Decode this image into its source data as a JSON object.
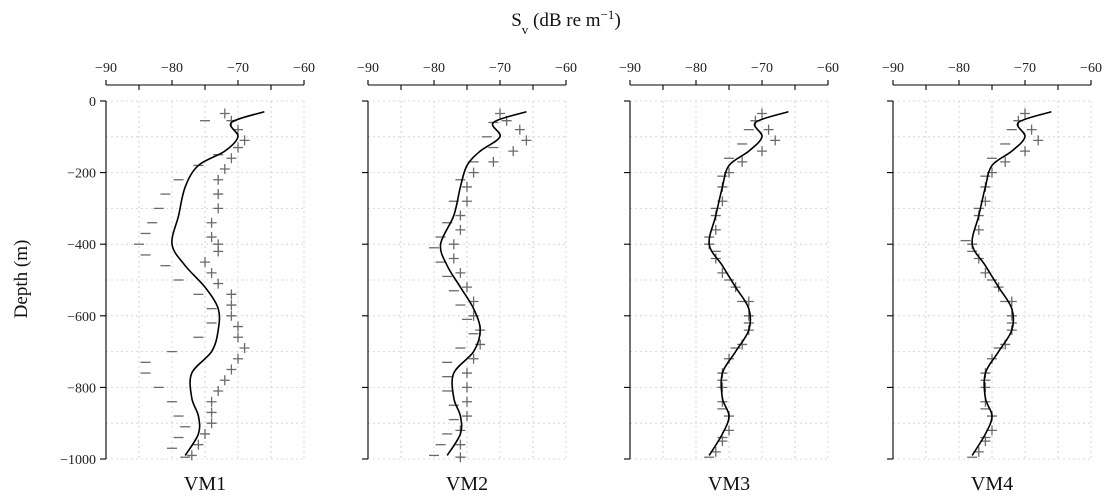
{
  "chart_data": {
    "type": "scatter",
    "title": "",
    "xlabel": "S",
    "xlabel_sub": "v",
    "xlabel_units": " (dB re m",
    "xlabel_sup": "−1",
    "xlabel_close": ")",
    "ylabel": "Depth (m)",
    "xlim": [
      -90,
      -60
    ],
    "ylim": [
      -1000,
      0
    ],
    "xticks": [
      "−90",
      "−80",
      "−70",
      "−60"
    ],
    "yticks": [
      "0",
      "−200",
      "−400",
      "−600",
      "−800",
      "−1000"
    ],
    "xtick_values": [
      -90,
      -80,
      -70,
      -60
    ],
    "ytick_values": [
      0,
      -200,
      -400,
      -600,
      -800,
      -1000
    ],
    "grid": true,
    "panels": [
      {
        "name": "VM1",
        "fit_line": [
          {
            "x": -66,
            "y": -30
          },
          {
            "x": -71,
            "y": -60
          },
          {
            "x": -70,
            "y": -100
          },
          {
            "x": -72,
            "y": -140
          },
          {
            "x": -76,
            "y": -180
          },
          {
            "x": -78,
            "y": -240
          },
          {
            "x": -79,
            "y": -320
          },
          {
            "x": -80,
            "y": -400
          },
          {
            "x": -78,
            "y": -460
          },
          {
            "x": -75,
            "y": -520
          },
          {
            "x": -73,
            "y": -580
          },
          {
            "x": -73,
            "y": -640
          },
          {
            "x": -74,
            "y": -700
          },
          {
            "x": -77,
            "y": -760
          },
          {
            "x": -77,
            "y": -830
          },
          {
            "x": -76,
            "y": -880
          },
          {
            "x": -76,
            "y": -930
          },
          {
            "x": -78,
            "y": -990
          }
        ],
        "plus_markers": [
          {
            "x": -72,
            "y": -35
          },
          {
            "x": -71,
            "y": -55
          },
          {
            "x": -70,
            "y": -80
          },
          {
            "x": -69,
            "y": -110
          },
          {
            "x": -70,
            "y": -130
          },
          {
            "x": -71,
            "y": -160
          },
          {
            "x": -72,
            "y": -190
          },
          {
            "x": -73,
            "y": -220
          },
          {
            "x": -73,
            "y": -260
          },
          {
            "x": -73,
            "y": -300
          },
          {
            "x": -74,
            "y": -340
          },
          {
            "x": -74,
            "y": -380
          },
          {
            "x": -73,
            "y": -400
          },
          {
            "x": -73,
            "y": -420
          },
          {
            "x": -75,
            "y": -450
          },
          {
            "x": -74,
            "y": -480
          },
          {
            "x": -73,
            "y": -510
          },
          {
            "x": -71,
            "y": -540
          },
          {
            "x": -71,
            "y": -570
          },
          {
            "x": -71,
            "y": -600
          },
          {
            "x": -70,
            "y": -630
          },
          {
            "x": -70,
            "y": -660
          },
          {
            "x": -69,
            "y": -690
          },
          {
            "x": -70,
            "y": -720
          },
          {
            "x": -71,
            "y": -750
          },
          {
            "x": -72,
            "y": -780
          },
          {
            "x": -73,
            "y": -810
          },
          {
            "x": -74,
            "y": -840
          },
          {
            "x": -74,
            "y": -870
          },
          {
            "x": -74,
            "y": -900
          },
          {
            "x": -75,
            "y": -930
          },
          {
            "x": -76,
            "y": -960
          },
          {
            "x": -77,
            "y": -990
          }
        ],
        "dash_markers": [
          {
            "x": -75,
            "y": -55
          },
          {
            "x": -73,
            "y": -150
          },
          {
            "x": -76,
            "y": -180
          },
          {
            "x": -79,
            "y": -220
          },
          {
            "x": -81,
            "y": -260
          },
          {
            "x": -82,
            "y": -300
          },
          {
            "x": -83,
            "y": -340
          },
          {
            "x": -84,
            "y": -370
          },
          {
            "x": -85,
            "y": -400
          },
          {
            "x": -84,
            "y": -430
          },
          {
            "x": -81,
            "y": -460
          },
          {
            "x": -79,
            "y": -500
          },
          {
            "x": -76,
            "y": -540
          },
          {
            "x": -74,
            "y": -580
          },
          {
            "x": -74,
            "y": -620
          },
          {
            "x": -76,
            "y": -660
          },
          {
            "x": -80,
            "y": -700
          },
          {
            "x": -84,
            "y": -730
          },
          {
            "x": -84,
            "y": -760
          },
          {
            "x": -82,
            "y": -800
          },
          {
            "x": -80,
            "y": -840
          },
          {
            "x": -79,
            "y": -880
          },
          {
            "x": -78,
            "y": -910
          },
          {
            "x": -79,
            "y": -940
          },
          {
            "x": -80,
            "y": -970
          },
          {
            "x": -78,
            "y": -995
          }
        ]
      },
      {
        "name": "VM2",
        "fit_line": [
          {
            "x": -66,
            "y": -30
          },
          {
            "x": -71,
            "y": -60
          },
          {
            "x": -70,
            "y": -100
          },
          {
            "x": -73,
            "y": -140
          },
          {
            "x": -75,
            "y": -180
          },
          {
            "x": -76,
            "y": -240
          },
          {
            "x": -77,
            "y": -320
          },
          {
            "x": -79,
            "y": -400
          },
          {
            "x": -78,
            "y": -460
          },
          {
            "x": -76,
            "y": -520
          },
          {
            "x": -74,
            "y": -580
          },
          {
            "x": -73,
            "y": -640
          },
          {
            "x": -74,
            "y": -700
          },
          {
            "x": -77,
            "y": -760
          },
          {
            "x": -77,
            "y": -830
          },
          {
            "x": -76,
            "y": -880
          },
          {
            "x": -76,
            "y": -930
          },
          {
            "x": -78,
            "y": -990
          }
        ],
        "plus_markers": [
          {
            "x": -70,
            "y": -35
          },
          {
            "x": -69,
            "y": -55
          },
          {
            "x": -67,
            "y": -80
          },
          {
            "x": -66,
            "y": -110
          },
          {
            "x": -68,
            "y": -140
          },
          {
            "x": -71,
            "y": -170
          },
          {
            "x": -74,
            "y": -200
          },
          {
            "x": -75,
            "y": -240
          },
          {
            "x": -75,
            "y": -280
          },
          {
            "x": -76,
            "y": -320
          },
          {
            "x": -76,
            "y": -360
          },
          {
            "x": -77,
            "y": -400
          },
          {
            "x": -77,
            "y": -440
          },
          {
            "x": -76,
            "y": -480
          },
          {
            "x": -75,
            "y": -520
          },
          {
            "x": -74,
            "y": -560
          },
          {
            "x": -74,
            "y": -600
          },
          {
            "x": -73,
            "y": -640
          },
          {
            "x": -73,
            "y": -680
          },
          {
            "x": -74,
            "y": -720
          },
          {
            "x": -75,
            "y": -760
          },
          {
            "x": -75,
            "y": -800
          },
          {
            "x": -75,
            "y": -840
          },
          {
            "x": -75,
            "y": -880
          },
          {
            "x": -76,
            "y": -920
          },
          {
            "x": -76,
            "y": -960
          },
          {
            "x": -76,
            "y": -995
          }
        ],
        "dash_markers": [
          {
            "x": -71,
            "y": -60
          },
          {
            "x": -72,
            "y": -100
          },
          {
            "x": -71,
            "y": -130
          },
          {
            "x": -74,
            "y": -170
          },
          {
            "x": -76,
            "y": -220
          },
          {
            "x": -77,
            "y": -280
          },
          {
            "x": -78,
            "y": -340
          },
          {
            "x": -79,
            "y": -380
          },
          {
            "x": -80,
            "y": -410
          },
          {
            "x": -79,
            "y": -450
          },
          {
            "x": -78,
            "y": -490
          },
          {
            "x": -77,
            "y": -530
          },
          {
            "x": -76,
            "y": -570
          },
          {
            "x": -75,
            "y": -610
          },
          {
            "x": -74,
            "y": -650
          },
          {
            "x": -76,
            "y": -690
          },
          {
            "x": -78,
            "y": -730
          },
          {
            "x": -78,
            "y": -770
          },
          {
            "x": -78,
            "y": -810
          },
          {
            "x": -77,
            "y": -850
          },
          {
            "x": -77,
            "y": -890
          },
          {
            "x": -78,
            "y": -930
          },
          {
            "x": -79,
            "y": -960
          },
          {
            "x": -80,
            "y": -990
          }
        ]
      },
      {
        "name": "VM3",
        "fit_line": [
          {
            "x": -66,
            "y": -30
          },
          {
            "x": -71,
            "y": -60
          },
          {
            "x": -70,
            "y": -100
          },
          {
            "x": -72,
            "y": -140
          },
          {
            "x": -75,
            "y": -180
          },
          {
            "x": -76,
            "y": -240
          },
          {
            "x": -77,
            "y": -320
          },
          {
            "x": -78,
            "y": -400
          },
          {
            "x": -76,
            "y": -460
          },
          {
            "x": -74,
            "y": -520
          },
          {
            "x": -72,
            "y": -580
          },
          {
            "x": -72,
            "y": -640
          },
          {
            "x": -74,
            "y": -700
          },
          {
            "x": -76,
            "y": -760
          },
          {
            "x": -76,
            "y": -830
          },
          {
            "x": -75,
            "y": -880
          },
          {
            "x": -76,
            "y": -930
          },
          {
            "x": -78,
            "y": -990
          }
        ],
        "plus_markers": [
          {
            "x": -70,
            "y": -35
          },
          {
            "x": -71,
            "y": -55
          },
          {
            "x": -69,
            "y": -80
          },
          {
            "x": -68,
            "y": -110
          },
          {
            "x": -70,
            "y": -140
          },
          {
            "x": -73,
            "y": -170
          },
          {
            "x": -75,
            "y": -200
          },
          {
            "x": -76,
            "y": -240
          },
          {
            "x": -76,
            "y": -280
          },
          {
            "x": -77,
            "y": -320
          },
          {
            "x": -77,
            "y": -360
          },
          {
            "x": -78,
            "y": -400
          },
          {
            "x": -77,
            "y": -440
          },
          {
            "x": -76,
            "y": -480
          },
          {
            "x": -74,
            "y": -520
          },
          {
            "x": -72,
            "y": -560
          },
          {
            "x": -72,
            "y": -600
          },
          {
            "x": -72,
            "y": -640
          },
          {
            "x": -73,
            "y": -680
          },
          {
            "x": -75,
            "y": -720
          },
          {
            "x": -76,
            "y": -760
          },
          {
            "x": -76,
            "y": -800
          },
          {
            "x": -76,
            "y": -840
          },
          {
            "x": -75,
            "y": -880
          },
          {
            "x": -75,
            "y": -920
          },
          {
            "x": -76,
            "y": -950
          },
          {
            "x": -77,
            "y": -980
          }
        ],
        "dash_markers": [
          {
            "x": -72,
            "y": -80
          },
          {
            "x": -73,
            "y": -120
          },
          {
            "x": -75,
            "y": -160
          },
          {
            "x": -76,
            "y": -210
          },
          {
            "x": -77,
            "y": -300
          },
          {
            "x": -78,
            "y": -380
          },
          {
            "x": -77,
            "y": -420
          },
          {
            "x": -75,
            "y": -500
          },
          {
            "x": -73,
            "y": -560
          },
          {
            "x": -72,
            "y": -620
          },
          {
            "x": -74,
            "y": -690
          },
          {
            "x": -76,
            "y": -780
          },
          {
            "x": -76,
            "y": -860
          },
          {
            "x": -76,
            "y": -940
          },
          {
            "x": -78,
            "y": -995
          }
        ]
      },
      {
        "name": "VM4",
        "fit_line": [
          {
            "x": -66,
            "y": -30
          },
          {
            "x": -71,
            "y": -60
          },
          {
            "x": -70,
            "y": -100
          },
          {
            "x": -72,
            "y": -140
          },
          {
            "x": -75,
            "y": -180
          },
          {
            "x": -76,
            "y": -240
          },
          {
            "x": -77,
            "y": -320
          },
          {
            "x": -78,
            "y": -400
          },
          {
            "x": -76,
            "y": -460
          },
          {
            "x": -74,
            "y": -520
          },
          {
            "x": -72,
            "y": -580
          },
          {
            "x": -72,
            "y": -640
          },
          {
            "x": -74,
            "y": -700
          },
          {
            "x": -76,
            "y": -760
          },
          {
            "x": -76,
            "y": -830
          },
          {
            "x": -75,
            "y": -880
          },
          {
            "x": -76,
            "y": -930
          },
          {
            "x": -78,
            "y": -990
          }
        ],
        "plus_markers": [
          {
            "x": -70,
            "y": -35
          },
          {
            "x": -71,
            "y": -55
          },
          {
            "x": -69,
            "y": -80
          },
          {
            "x": -68,
            "y": -110
          },
          {
            "x": -70,
            "y": -140
          },
          {
            "x": -73,
            "y": -170
          },
          {
            "x": -75,
            "y": -200
          },
          {
            "x": -76,
            "y": -240
          },
          {
            "x": -76,
            "y": -280
          },
          {
            "x": -77,
            "y": -320
          },
          {
            "x": -77,
            "y": -360
          },
          {
            "x": -78,
            "y": -400
          },
          {
            "x": -77,
            "y": -440
          },
          {
            "x": -76,
            "y": -480
          },
          {
            "x": -74,
            "y": -520
          },
          {
            "x": -72,
            "y": -560
          },
          {
            "x": -72,
            "y": -600
          },
          {
            "x": -72,
            "y": -640
          },
          {
            "x": -73,
            "y": -680
          },
          {
            "x": -75,
            "y": -720
          },
          {
            "x": -76,
            "y": -760
          },
          {
            "x": -76,
            "y": -800
          },
          {
            "x": -76,
            "y": -840
          },
          {
            "x": -75,
            "y": -880
          },
          {
            "x": -75,
            "y": -920
          },
          {
            "x": -76,
            "y": -950
          },
          {
            "x": -77,
            "y": -980
          }
        ],
        "dash_markers": [
          {
            "x": -72,
            "y": -80
          },
          {
            "x": -73,
            "y": -120
          },
          {
            "x": -75,
            "y": -160
          },
          {
            "x": -76,
            "y": -210
          },
          {
            "x": -77,
            "y": -300
          },
          {
            "x": -79,
            "y": -390
          },
          {
            "x": -78,
            "y": -420
          },
          {
            "x": -75,
            "y": -500
          },
          {
            "x": -73,
            "y": -560
          },
          {
            "x": -72,
            "y": -620
          },
          {
            "x": -74,
            "y": -690
          },
          {
            "x": -76,
            "y": -780
          },
          {
            "x": -76,
            "y": -860
          },
          {
            "x": -76,
            "y": -940
          },
          {
            "x": -78,
            "y": -995
          }
        ]
      }
    ]
  }
}
